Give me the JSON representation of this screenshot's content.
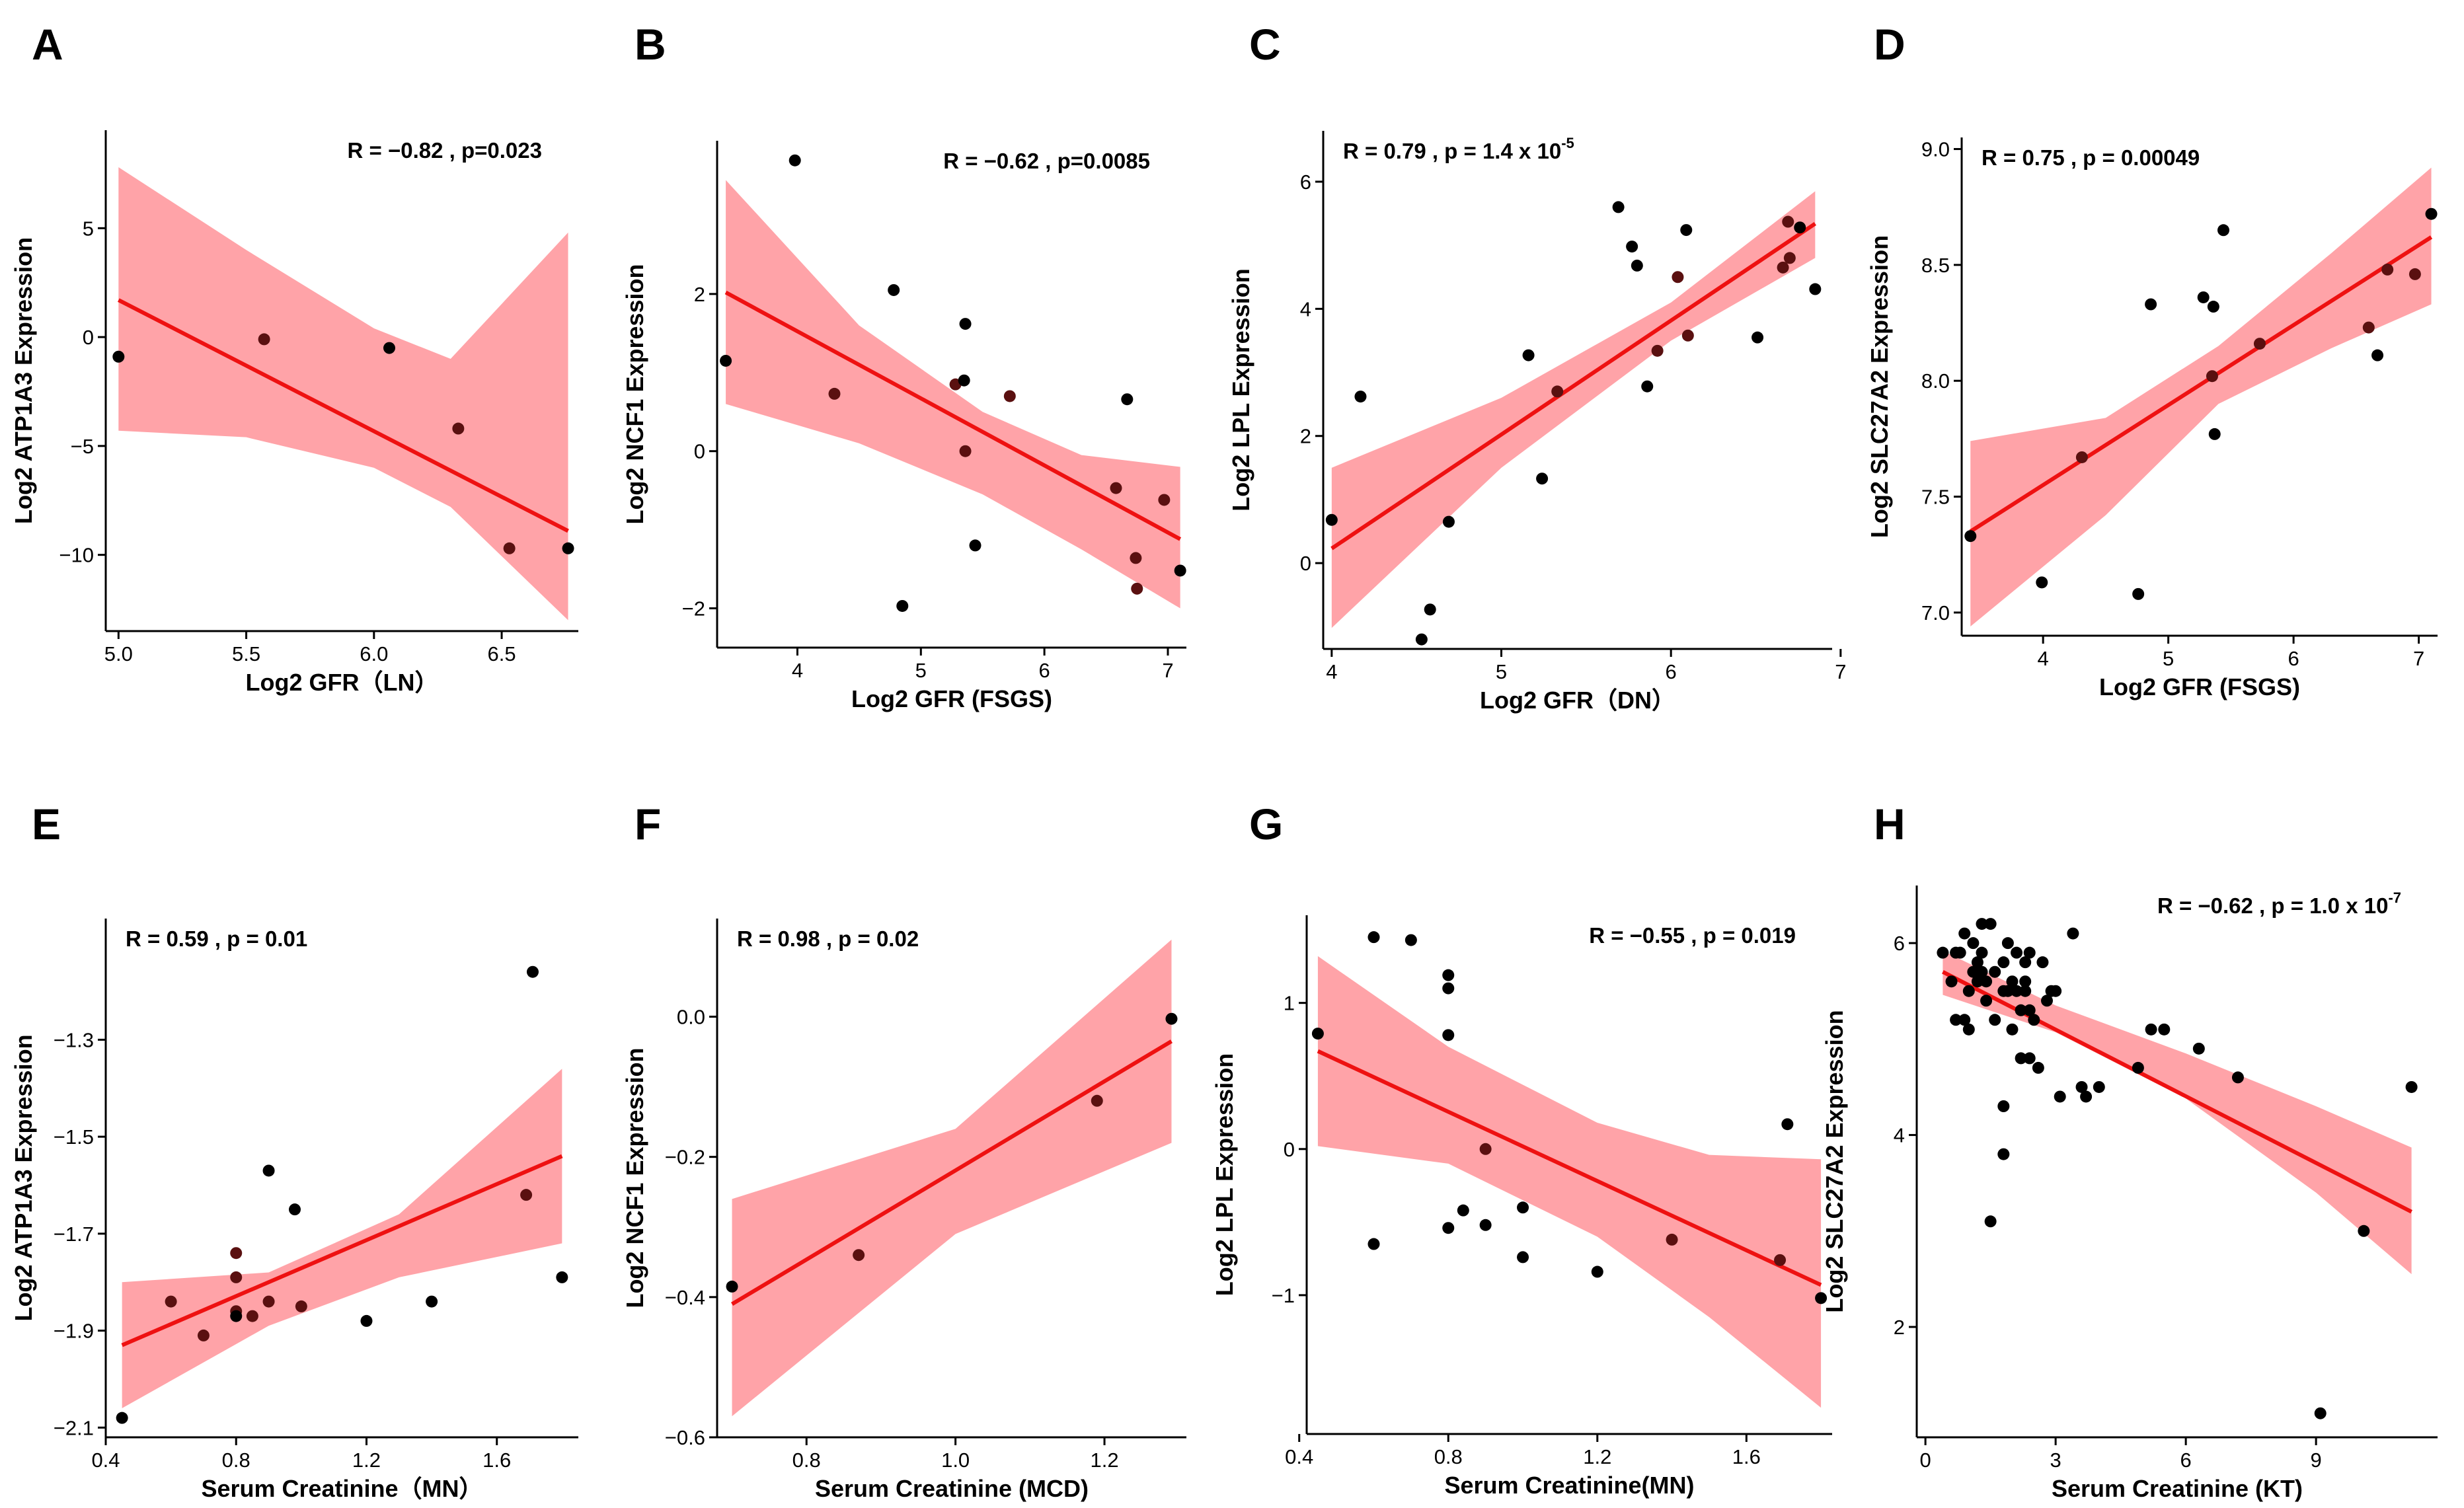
{
  "chart_data": [
    {
      "id": "A",
      "type": "scatter",
      "title": "A",
      "xlabel": "Log2 GFR（LN）",
      "ylabel": "Log2  ATP1A3  Expression",
      "xlim": [
        4.95,
        6.8
      ],
      "ylim": [
        -13.5,
        9.5
      ],
      "xticks": [
        5.0,
        5.5,
        6.0,
        6.5
      ],
      "xtick_labels": [
        "5.0",
        "5.5",
        "6.0",
        "6.5"
      ],
      "yticks": [
        5,
        0,
        -5,
        -10
      ],
      "ytick_labels": [
        "5",
        "0",
        "−5",
        "−10"
      ],
      "annotation": {
        "text": "R = −0.82 , p=0.023",
        "sup": "",
        "anchor": "top-right"
      },
      "x": [
        5.0,
        5.57,
        6.06,
        6.33,
        6.53,
        6.76
      ],
      "y": [
        -0.9,
        -0.1,
        -0.5,
        -4.2,
        -9.7,
        -9.7
      ],
      "point_colors": [
        "#000000",
        "#5a1010",
        "#000000",
        "#5a1010",
        "#5a1010",
        "#000000"
      ],
      "fit_line": [
        [
          5.0,
          1.7
        ],
        [
          6.76,
          -8.9
        ]
      ],
      "ci_upper": [
        [
          5.0,
          7.8
        ],
        [
          5.5,
          4.0
        ],
        [
          6.0,
          0.4
        ],
        [
          6.3,
          -1.0
        ],
        [
          6.76,
          4.8
        ]
      ],
      "ci_lower": [
        [
          5.0,
          -4.3
        ],
        [
          5.5,
          -4.6
        ],
        [
          6.0,
          -6.0
        ],
        [
          6.3,
          -7.8
        ],
        [
          6.76,
          -13.0
        ]
      ]
    },
    {
      "id": "B",
      "type": "scatter",
      "title": "B",
      "xlabel": "Log2 GFR (FSGS)",
      "ylabel": "Log2  NCF1  Expression",
      "xlim": [
        3.35,
        7.15
      ],
      "ylim": [
        -2.5,
        3.95
      ],
      "xticks": [
        4,
        5,
        6,
        7
      ],
      "xtick_labels": [
        "4",
        "5",
        "6",
        "7"
      ],
      "yticks": [
        2,
        0,
        -2
      ],
      "ytick_labels": [
        "2",
        "0",
        "−2"
      ],
      "annotation": {
        "text": "R = −0.62 , p=0.0085",
        "sup": "",
        "anchor": "top-right"
      },
      "x": [
        3.42,
        3.98,
        4.3,
        4.78,
        4.85,
        5.28,
        5.35,
        5.36,
        5.36,
        5.44,
        5.72,
        6.58,
        6.67,
        6.74,
        6.75,
        6.97,
        7.1
      ],
      "y": [
        1.15,
        3.7,
        0.73,
        2.05,
        -1.97,
        0.85,
        0.9,
        1.62,
        0.0,
        -1.2,
        0.7,
        -0.47,
        0.66,
        -1.36,
        -1.75,
        -0.62,
        -1.52
      ],
      "point_colors": [
        "#000000",
        "#000000",
        "#5a1010",
        "#000000",
        "#000000",
        "#5a1010",
        "#000000",
        "#000000",
        "#5a1010",
        "#000000",
        "#5a1010",
        "#5a1010",
        "#000000",
        "#5a1010",
        "#5a1010",
        "#5a1010",
        "#000000"
      ],
      "fit_line": [
        [
          3.42,
          2.02
        ],
        [
          7.1,
          -1.12
        ]
      ],
      "ci_upper": [
        [
          3.42,
          3.45
        ],
        [
          4.5,
          1.6
        ],
        [
          5.5,
          0.5
        ],
        [
          6.3,
          -0.05
        ],
        [
          7.1,
          -0.2
        ]
      ],
      "ci_lower": [
        [
          3.42,
          0.6
        ],
        [
          4.5,
          0.1
        ],
        [
          5.5,
          -0.55
        ],
        [
          6.3,
          -1.25
        ],
        [
          7.1,
          -2.0
        ]
      ]
    },
    {
      "id": "C",
      "type": "scatter",
      "title": "C",
      "xlabel": "Log2 GFR（DN）",
      "ylabel": "Log2   LPL  Expression",
      "xlim": [
        3.95,
        6.95
      ],
      "ylim": [
        -1.35,
        6.8
      ],
      "xticks": [
        4,
        5,
        6,
        7
      ],
      "xtick_labels": [
        "4",
        "5",
        "6",
        "7"
      ],
      "yticks": [
        6,
        4,
        2,
        0
      ],
      "ytick_labels": [
        "6",
        "4",
        "2",
        "0"
      ],
      "annotation": {
        "text": "R = 0.79 , p = 1.4 x 10",
        "sup": "-5",
        "anchor": "top-left"
      },
      "x": [
        4.0,
        4.17,
        4.53,
        4.58,
        4.69,
        5.16,
        5.24,
        5.33,
        5.69,
        5.77,
        5.8,
        5.86,
        5.92,
        6.04,
        6.09,
        6.1,
        6.51,
        6.66,
        6.69,
        6.7,
        6.76,
        6.85
      ],
      "y": [
        0.68,
        2.62,
        -1.2,
        -0.73,
        0.65,
        3.27,
        1.33,
        2.7,
        5.6,
        4.98,
        4.68,
        2.78,
        3.34,
        4.5,
        5.24,
        3.58,
        3.55,
        4.65,
        5.37,
        4.8,
        5.28,
        4.31
      ],
      "point_colors": [
        "#000000",
        "#000000",
        "#000000",
        "#000000",
        "#000000",
        "#000000",
        "#000000",
        "#5a1010",
        "#000000",
        "#000000",
        "#000000",
        "#000000",
        "#5a1010",
        "#5a1010",
        "#000000",
        "#5a1010",
        "#000000",
        "#5a1010",
        "#5a1010",
        "#5a1010",
        "#000000",
        "#000000"
      ],
      "fit_line": [
        [
          4.0,
          0.23
        ],
        [
          6.85,
          5.34
        ]
      ],
      "ci_upper": [
        [
          4.0,
          1.5
        ],
        [
          5.0,
          2.6
        ],
        [
          6.0,
          4.1
        ],
        [
          6.85,
          5.85
        ]
      ],
      "ci_lower": [
        [
          4.0,
          -1.02
        ],
        [
          5.0,
          1.5
        ],
        [
          6.0,
          3.5
        ],
        [
          6.85,
          4.8
        ]
      ]
    },
    {
      "id": "D",
      "type": "scatter",
      "title": "D",
      "xlabel": "Log2 GFR (FSGS)",
      "ylabel": "Log2  SLC27A2  Expression",
      "xlim": [
        3.35,
        7.15
      ],
      "ylim": [
        6.9,
        9.05
      ],
      "xticks": [
        4,
        5,
        6,
        7
      ],
      "xtick_labels": [
        "4",
        "5",
        "6",
        "7"
      ],
      "yticks": [
        9.0,
        8.5,
        8.0,
        7.5,
        7.0
      ],
      "ytick_labels": [
        "9.0",
        "8.5",
        "8.0",
        "7.5",
        "7.0"
      ],
      "annotation": {
        "text": "R = 0.75 , p = 0.00049",
        "sup": "",
        "anchor": "top-left"
      },
      "x": [
        3.42,
        3.99,
        4.31,
        4.76,
        4.86,
        5.28,
        5.35,
        5.36,
        5.37,
        5.44,
        5.73,
        6.6,
        6.67,
        6.75,
        6.97,
        7.1
      ],
      "y": [
        7.33,
        7.13,
        7.67,
        7.08,
        8.33,
        8.36,
        8.02,
        8.32,
        7.77,
        8.65,
        8.16,
        8.23,
        8.11,
        8.48,
        8.46,
        8.72
      ],
      "point_colors": [
        "#000000",
        "#000000",
        "#5a1010",
        "#000000",
        "#000000",
        "#000000",
        "#5a1010",
        "#000000",
        "#000000",
        "#000000",
        "#5a1010",
        "#5a1010",
        "#000000",
        "#5a1010",
        "#5a1010",
        "#000000"
      ],
      "fit_line": [
        [
          3.42,
          7.35
        ],
        [
          7.1,
          8.62
        ]
      ],
      "ci_upper": [
        [
          3.42,
          7.74
        ],
        [
          4.5,
          7.84
        ],
        [
          5.4,
          8.15
        ],
        [
          6.3,
          8.55
        ],
        [
          7.1,
          8.92
        ]
      ],
      "ci_lower": [
        [
          3.42,
          6.94
        ],
        [
          4.5,
          7.42
        ],
        [
          5.4,
          7.9
        ],
        [
          6.3,
          8.14
        ],
        [
          7.1,
          8.33
        ]
      ]
    },
    {
      "id": "E",
      "type": "scatter",
      "title": "E",
      "xlabel": "Serum Creatinine（MN）",
      "ylabel": "Log2 ATP1A3  Expression",
      "xlim": [
        0.4,
        1.85
      ],
      "ylim": [
        -2.12,
        -1.05
      ],
      "xticks": [
        0.4,
        0.8,
        1.2,
        1.6
      ],
      "xtick_labels": [
        "0.4",
        "0.8",
        "1.2",
        "1.6"
      ],
      "yticks": [
        -1.3,
        -1.5,
        -1.7,
        -1.9,
        -2.1
      ],
      "ytick_labels": [
        "−1.3",
        "−1.5",
        "−1.7",
        "−1.9",
        "−2.1"
      ],
      "annotation": {
        "text": "R = 0.59 , p = 0.01",
        "sup": "",
        "anchor": "top-left"
      },
      "x": [
        0.45,
        0.6,
        0.7,
        0.8,
        0.8,
        0.8,
        0.8,
        0.85,
        0.9,
        0.9,
        0.98,
        1.0,
        1.2,
        1.4,
        1.69,
        1.71,
        1.8
      ],
      "y": [
        -2.08,
        -1.84,
        -1.91,
        -1.86,
        -1.74,
        -1.79,
        -1.87,
        -1.87,
        -1.84,
        -1.57,
        -1.65,
        -1.85,
        -1.88,
        -1.84,
        -1.62,
        -1.16,
        -1.79
      ],
      "point_colors": [
        "#000000",
        "#5a1010",
        "#5a1010",
        "#5a1010",
        "#5a1010",
        "#5a1010",
        "#000000",
        "#5a1010",
        "#5a1010",
        "#000000",
        "#000000",
        "#5a1010",
        "#000000",
        "#000000",
        "#5a1010",
        "#000000",
        "#000000"
      ],
      "fit_line": [
        [
          0.45,
          -1.93
        ],
        [
          1.8,
          -1.54
        ]
      ],
      "ci_upper": [
        [
          0.45,
          -1.8
        ],
        [
          0.9,
          -1.78
        ],
        [
          1.3,
          -1.66
        ],
        [
          1.8,
          -1.36
        ]
      ],
      "ci_lower": [
        [
          0.45,
          -2.06
        ],
        [
          0.9,
          -1.89
        ],
        [
          1.3,
          -1.79
        ],
        [
          1.8,
          -1.72
        ]
      ]
    },
    {
      "id": "F",
      "type": "scatter",
      "title": "F",
      "xlabel": "Serum Creatinine (MCD)",
      "ylabel": "Log2  NCF1  Expression",
      "xlim": [
        0.68,
        1.31
      ],
      "ylim": [
        -0.6,
        0.14
      ],
      "xticks": [
        0.8,
        1.0,
        1.2
      ],
      "xtick_labels": [
        "0.8",
        "1.0",
        "1.2"
      ],
      "yticks": [
        0.0,
        -0.2,
        -0.4,
        -0.6
      ],
      "ytick_labels": [
        "0.0",
        "−0.2",
        "−0.4",
        "−0.6"
      ],
      "annotation": {
        "text": "R = 0.98 , p = 0.02",
        "sup": "",
        "anchor": "top-left"
      },
      "x": [
        0.7,
        0.87,
        1.19,
        1.29
      ],
      "y": [
        -0.385,
        -0.34,
        -0.12,
        -0.003
      ],
      "point_colors": [
        "#000000",
        "#5a1010",
        "#5a1010",
        "#000000"
      ],
      "fit_line": [
        [
          0.7,
          -0.41
        ],
        [
          1.29,
          -0.035
        ]
      ],
      "ci_upper": [
        [
          0.7,
          -0.26
        ],
        [
          1.0,
          -0.16
        ],
        [
          1.29,
          0.11
        ]
      ],
      "ci_lower": [
        [
          0.7,
          -0.57
        ],
        [
          1.0,
          -0.31
        ],
        [
          1.29,
          -0.18
        ]
      ]
    },
    {
      "id": "G",
      "type": "scatter",
      "title": "G",
      "xlabel": "Serum Creatinine(MN)",
      "ylabel": "Log2   LPL  Expression",
      "xlim": [
        0.42,
        1.83
      ],
      "ylim": [
        -1.95,
        1.6
      ],
      "xticks": [
        0.4,
        0.8,
        1.2,
        1.6
      ],
      "xtick_labels": [
        "0.4",
        "0.8",
        "1.2",
        "1.6"
      ],
      "yticks": [
        1,
        0,
        -1
      ],
      "ytick_labels": [
        "1",
        "0",
        "−1"
      ],
      "annotation": {
        "text": "R = −0.55 , p = 0.019",
        "sup": "",
        "anchor": "top-right"
      },
      "x": [
        0.45,
        0.6,
        0.6,
        0.7,
        0.8,
        0.8,
        0.8,
        0.8,
        0.84,
        0.9,
        0.9,
        1.0,
        1.0,
        1.2,
        1.4,
        1.69,
        1.71,
        1.8
      ],
      "y": [
        0.79,
        1.45,
        -0.65,
        1.43,
        1.19,
        1.1,
        0.78,
        -0.54,
        -0.42,
        0.0,
        -0.52,
        -0.4,
        -0.74,
        -0.84,
        -0.62,
        -0.76,
        0.17,
        -1.02
      ],
      "point_colors": [
        "#000000",
        "#000000",
        "#000000",
        "#000000",
        "#000000",
        "#000000",
        "#000000",
        "#000000",
        "#000000",
        "#5a1010",
        "#000000",
        "#000000",
        "#000000",
        "#000000",
        "#5a1010",
        "#5a1010",
        "#000000",
        "#000000"
      ],
      "fit_line": [
        [
          0.45,
          0.67
        ],
        [
          1.8,
          -0.93
        ]
      ],
      "ci_upper": [
        [
          0.45,
          1.32
        ],
        [
          0.8,
          0.7
        ],
        [
          1.2,
          0.18
        ],
        [
          1.5,
          -0.04
        ],
        [
          1.8,
          -0.07
        ]
      ],
      "ci_lower": [
        [
          0.45,
          0.02
        ],
        [
          0.8,
          -0.1
        ],
        [
          1.2,
          -0.6
        ],
        [
          1.5,
          -1.15
        ],
        [
          1.8,
          -1.77
        ]
      ]
    },
    {
      "id": "H",
      "type": "scatter",
      "title": "H",
      "xlabel": "Serum Creatinine (KT)",
      "ylabel": "Log2 SLC27A2 Expression",
      "xlim": [
        -0.2,
        11.8
      ],
      "ylim": [
        0.85,
        6.6
      ],
      "xticks": [
        0,
        3,
        6,
        9
      ],
      "xtick_labels": [
        "0",
        "3",
        "6",
        "9"
      ],
      "yticks": [
        6,
        4,
        2
      ],
      "ytick_labels": [
        "6",
        "4",
        "2"
      ],
      "annotation": {
        "text": "R = −0.62 , p = 1.0 x 10",
        "sup": "-7",
        "anchor": "top-right"
      },
      "x": [
        0.4,
        0.6,
        0.7,
        0.8,
        0.9,
        1.0,
        1.0,
        1.1,
        1.2,
        1.2,
        1.3,
        1.3,
        1.4,
        1.4,
        1.5,
        1.6,
        1.8,
        1.8,
        1.9,
        2.0,
        2.0,
        2.1,
        2.1,
        2.2,
        2.2,
        2.3,
        2.3,
        2.4,
        2.4,
        2.5,
        2.6,
        2.7,
        2.8,
        3.0,
        3.1,
        3.4,
        3.6,
        3.7,
        4.0,
        4.9,
        5.2,
        5.5,
        6.3,
        7.2,
        10.1,
        9.1,
        11.2,
        0.9,
        1.5,
        1.8,
        2.4,
        0.7,
        1.1,
        1.9,
        2.9,
        1.3,
        2.3,
        1.8,
        1.6
      ],
      "y": [
        5.9,
        5.6,
        5.2,
        5.9,
        6.1,
        5.5,
        5.1,
        6.0,
        5.8,
        5.6,
        6.2,
        5.9,
        5.4,
        5.6,
        6.2,
        5.2,
        5.8,
        4.3,
        6.0,
        5.6,
        5.1,
        5.9,
        5.5,
        5.3,
        4.8,
        5.6,
        5.5,
        4.8,
        5.3,
        5.2,
        4.7,
        5.8,
        5.4,
        5.5,
        4.4,
        6.1,
        4.5,
        4.4,
        4.5,
        4.7,
        5.1,
        5.1,
        4.9,
        4.6,
        3.0,
        1.1,
        4.5,
        5.2,
        3.1,
        3.8,
        5.9,
        5.9,
        5.7,
        5.5,
        5.5,
        5.7,
        5.8,
        5.5,
        5.7
      ],
      "point_colors": [],
      "fit_line": [
        [
          0.4,
          5.7
        ],
        [
          11.2,
          3.2
        ]
      ],
      "ci_upper": [
        [
          0.4,
          5.92
        ],
        [
          3.0,
          5.35
        ],
        [
          6.0,
          4.85
        ],
        [
          9.0,
          4.3
        ],
        [
          11.2,
          3.87
        ]
      ],
      "ci_lower": [
        [
          0.4,
          5.46
        ],
        [
          3.0,
          5.07
        ],
        [
          6.0,
          4.38
        ],
        [
          9.0,
          3.4
        ],
        [
          11.2,
          2.55
        ]
      ]
    }
  ]
}
